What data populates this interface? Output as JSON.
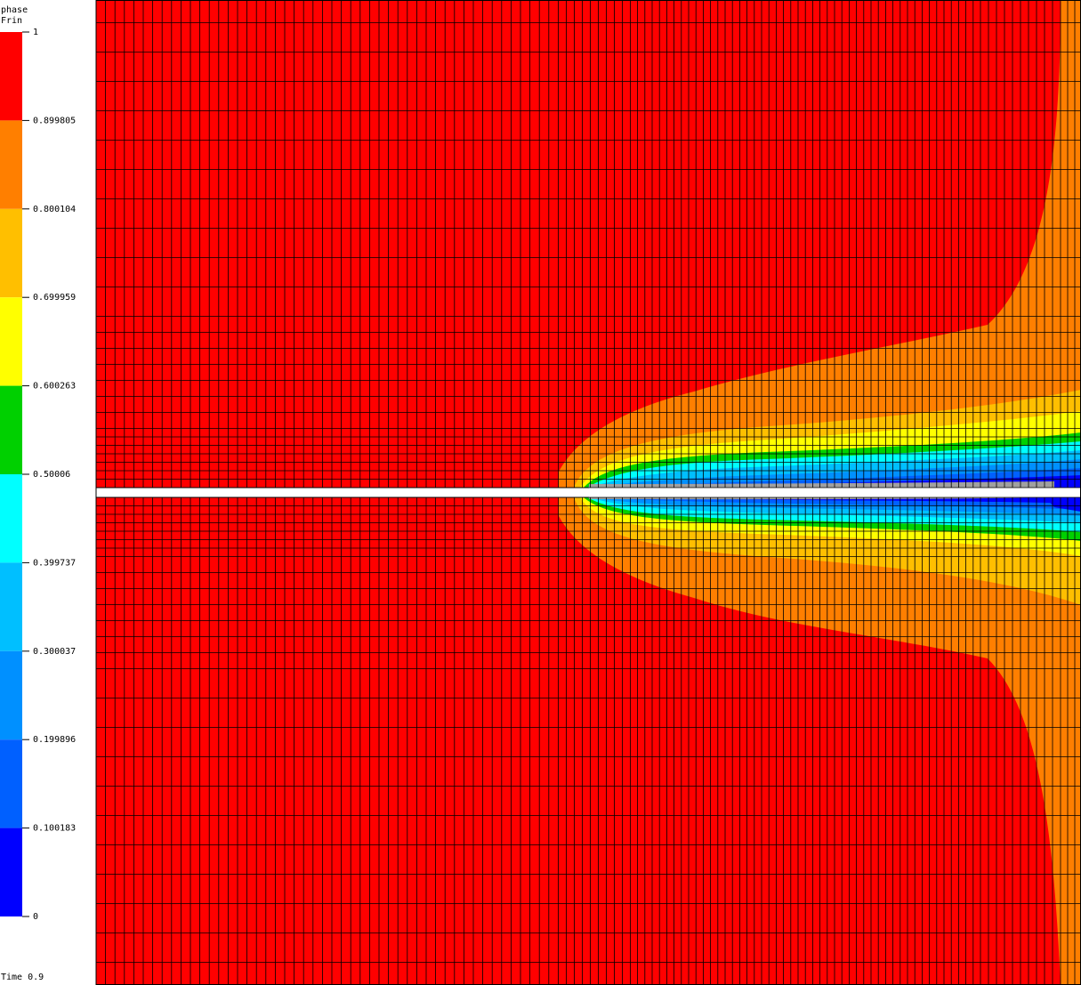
{
  "chart_data": {
    "type": "heatmap",
    "title_line1": "phase",
    "title_line2": "Frin",
    "time_label": "Time 0.9",
    "scale_min": 0,
    "scale_max": 1,
    "colorbar": {
      "ticks": [
        "1",
        "0.899805",
        "0.800104",
        "0.699959",
        "0.600263",
        "0.50006",
        "0.399737",
        "0.300037",
        "0.199896",
        "0.100183",
        "0"
      ],
      "band_colors": [
        "#ff0000",
        "#ff7f00",
        "#ffbf00",
        "#ffff00",
        "#00d000",
        "#00ffff",
        "#00bfff",
        "#0090ff",
        "#0060ff",
        "#0000ff"
      ]
    },
    "contour_colors": {
      "level_0.9": "#ff7f00",
      "level_0.8": "#ffbf00",
      "level_0.7": "#ffff00",
      "level_0.6": "#00d000",
      "level_0.5": "#00ffff",
      "level_0.4": "#00bfff",
      "level_0.3": "#0090ff",
      "level_0.2": "#0060ff",
      "level_0.1": "#0000ff",
      "crack_fill": "#a0a0a0",
      "background": "#ff0000",
      "mesh": "#000000"
    }
  }
}
